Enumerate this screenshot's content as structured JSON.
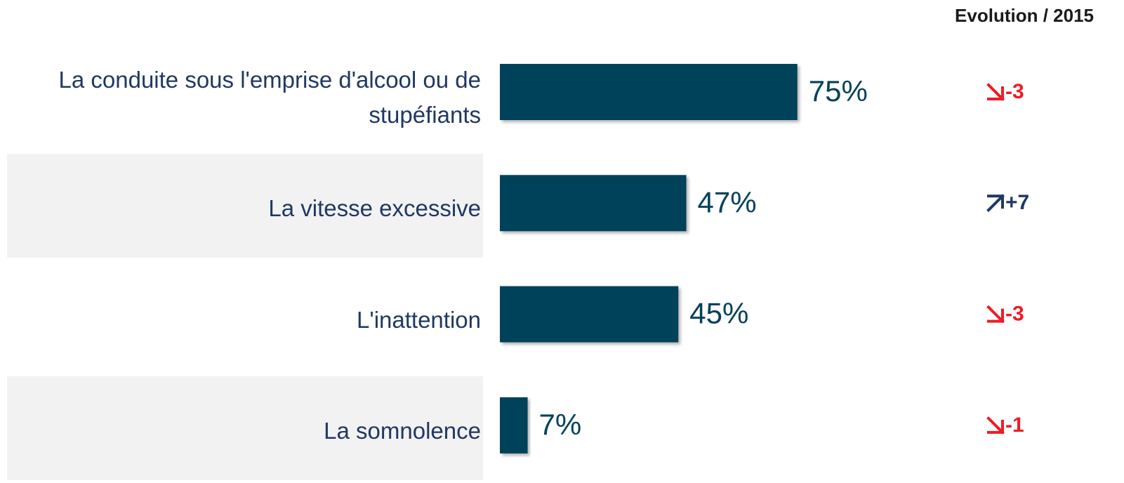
{
  "chart_data": {
    "type": "bar",
    "orientation": "horizontal",
    "categories": [
      "La conduite sous l'emprise d'alcool ou de stupéfiants",
      "La vitesse excessive",
      "L'inattention",
      "La somnolence"
    ],
    "values": [
      75,
      47,
      45,
      7
    ],
    "value_labels": [
      "75%",
      "47%",
      "45%",
      "7%"
    ],
    "color": "#04425a",
    "xlim": [
      0,
      100
    ],
    "evolution": {
      "title": "Evolution / 2015",
      "values": [
        -3,
        7,
        -3,
        -1
      ],
      "value_labels": [
        "-3",
        "+7",
        "-3",
        "-1"
      ],
      "colors": {
        "down": "#ee1c25",
        "up": "#1f3864"
      }
    }
  }
}
